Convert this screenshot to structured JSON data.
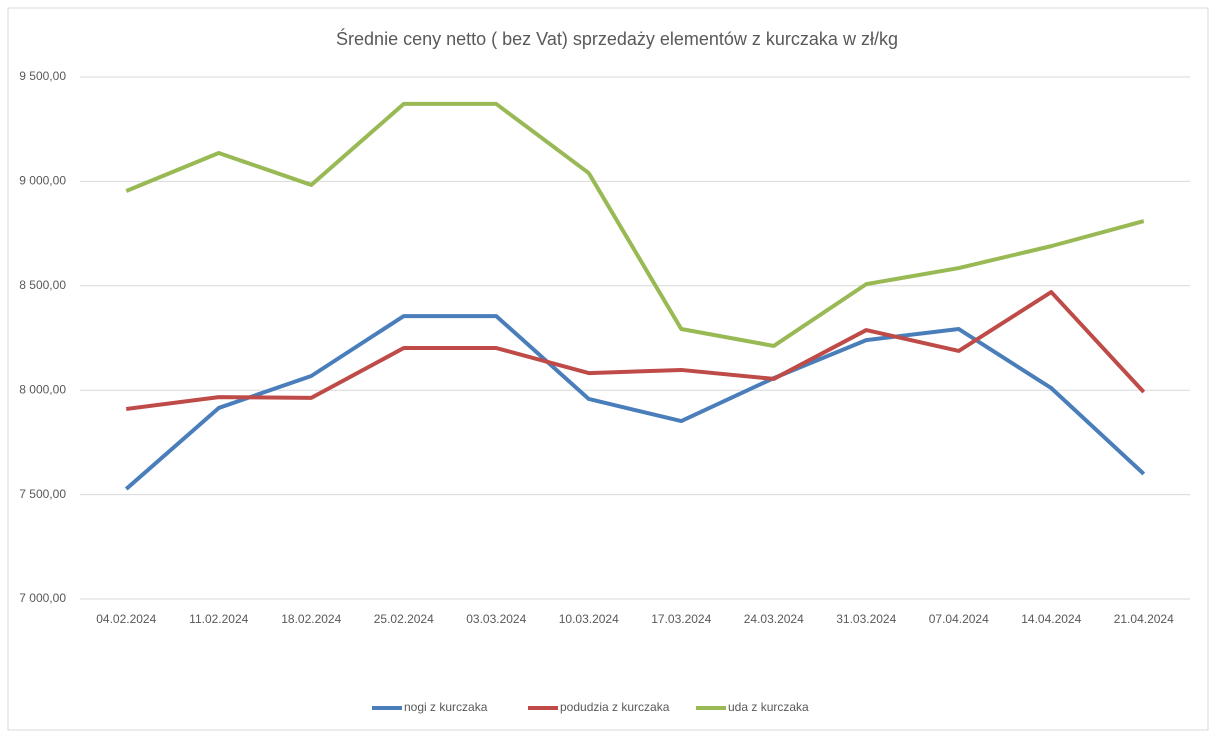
{
  "chart_data": {
    "type": "line",
    "title": "Średnie ceny netto ( bez Vat) sprzedaży elementów z kurczaka w zł/kg",
    "categories": [
      "04.02.2024",
      "11.02.2024",
      "18.02.2024",
      "25.02.2024",
      "03.03.2024",
      "10.03.2024",
      "17.03.2024",
      "24.03.2024",
      "31.03.2024",
      "07.04.2024",
      "14.04.2024",
      "21.04.2024"
    ],
    "series": [
      {
        "name": "nogi z kurczaka",
        "color": "#4a7ebb",
        "values": [
          7527,
          7915,
          8068,
          8355,
          8355,
          7958,
          7852,
          8058,
          8240,
          8293,
          8010,
          7599
        ]
      },
      {
        "name": "podudzia z kurczaka",
        "color": "#be4b48",
        "values": [
          7910,
          7967,
          7963,
          8202,
          8202,
          8082,
          8097,
          8054,
          8288,
          8188,
          8470,
          7991
        ]
      },
      {
        "name": "uda z kurczaka",
        "color": "#98b954",
        "values": [
          8954,
          9136,
          8983,
          9371,
          9371,
          9040,
          8293,
          8212,
          8508,
          8585,
          8690,
          8810
        ]
      }
    ],
    "ylim": [
      7000,
      9500
    ],
    "yticks": [
      {
        "value": 7000,
        "label": "7 000,00"
      },
      {
        "value": 7500,
        "label": "7 500,00"
      },
      {
        "value": 8000,
        "label": "8 000,00"
      },
      {
        "value": 8500,
        "label": "8 500,00"
      },
      {
        "value": 9000,
        "label": "9 000,00"
      },
      {
        "value": 9500,
        "label": "9 500,00"
      }
    ],
    "grid": true,
    "legend": "bottom"
  }
}
